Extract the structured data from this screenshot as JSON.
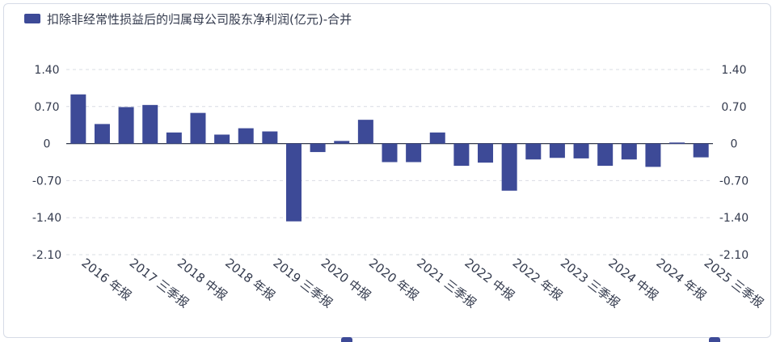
{
  "colors": {
    "bar": "#3d4a97",
    "axis": "#333a4d",
    "grid": "#d9dce3"
  },
  "chart_data": {
    "type": "bar",
    "series_name": "扣除非经常性损益后的归属母公司股东净利润(亿元)-合并",
    "ylim": [
      -2.1,
      1.4
    ],
    "y_ticks": [
      "1.40",
      "0.70",
      "0",
      "-0.70",
      "-1.40",
      "-2.10"
    ],
    "y_tick_values": [
      1.4,
      0.7,
      0,
      -0.7,
      -1.4,
      -2.1
    ],
    "legend_position": "top-left",
    "x_labels": [
      "2016 年报",
      "2017 三季报",
      "2018 中报",
      "2018 年报",
      "2019 三季报",
      "2020 中报",
      "2020 年报",
      "2021 三季报",
      "2022 中报",
      "2022 年报",
      "2023 三季报",
      "2024 中报",
      "2024 年报",
      "2025 三季报"
    ],
    "values": [
      0.93,
      0.37,
      0.69,
      0.73,
      0.21,
      0.58,
      0.17,
      0.29,
      0.23,
      -1.47,
      -0.16,
      0.05,
      0.45,
      -0.35,
      -0.35,
      0.21,
      -0.42,
      -0.36,
      -0.89,
      -0.3,
      -0.27,
      -0.28,
      -0.42,
      -0.3,
      -0.44,
      0.02,
      -0.26
    ]
  }
}
